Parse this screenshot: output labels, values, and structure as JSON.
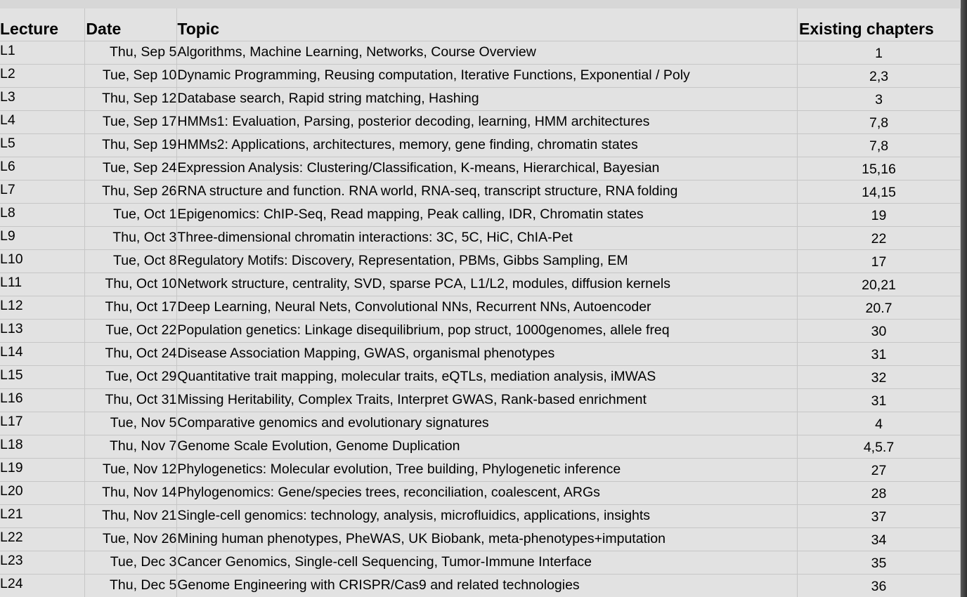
{
  "table": {
    "headers": {
      "lecture": "Lecture",
      "date": "Date",
      "topic": "Topic",
      "chapters": "Existing chapters"
    },
    "rows": [
      {
        "lecture": "L1",
        "date": "Thu, Sep 5",
        "topic": "Algorithms, Machine Learning, Networks, Course Overview",
        "chapters": "1"
      },
      {
        "lecture": "L2",
        "date": "Tue, Sep 10",
        "topic": "Dynamic Programming, Reusing computation, Iterative Functions, Exponential / Poly",
        "chapters": "2,3"
      },
      {
        "lecture": "L3",
        "date": "Thu, Sep 12",
        "topic": "Database search, Rapid string matching, Hashing",
        "chapters": "3"
      },
      {
        "lecture": "L4",
        "date": "Tue, Sep 17",
        "topic": "HMMs1: Evaluation, Parsing, posterior decoding, learning, HMM architectures",
        "chapters": "7,8"
      },
      {
        "lecture": "L5",
        "date": "Thu, Sep 19",
        "topic": "HMMs2: Applications, architectures, memory, gene finding, chromatin states",
        "chapters": "7,8"
      },
      {
        "lecture": "L6",
        "date": "Tue, Sep 24",
        "topic": "Expression Analysis: Clustering/Classification, K-means, Hierarchical, Bayesian",
        "chapters": "15,16"
      },
      {
        "lecture": "L7",
        "date": "Thu, Sep 26",
        "topic": "RNA structure and function. RNA world, RNA-seq, transcript structure, RNA folding",
        "chapters": "14,15"
      },
      {
        "lecture": "L8",
        "date": "Tue, Oct 1",
        "topic": "Epigenomics: ChIP-Seq, Read mapping, Peak calling, IDR, Chromatin states",
        "chapters": "19"
      },
      {
        "lecture": "L9",
        "date": "Thu, Oct 3",
        "topic": "Three-dimensional chromatin interactions: 3C, 5C, HiC, ChIA-Pet",
        "chapters": "22"
      },
      {
        "lecture": "L10",
        "date": "Tue, Oct 8",
        "topic": "Regulatory Motifs: Discovery, Representation, PBMs, Gibbs Sampling, EM",
        "chapters": "17"
      },
      {
        "lecture": "L11",
        "date": "Thu, Oct 10",
        "topic": "Network structure, centrality, SVD, sparse PCA, L1/L2, modules, diffusion kernels",
        "chapters": "20,21"
      },
      {
        "lecture": "L12",
        "date": "Thu, Oct 17",
        "topic": "Deep Learning, Neural Nets, Convolutional NNs, Recurrent NNs, Autoencoder",
        "chapters": "20.7"
      },
      {
        "lecture": "L13",
        "date": "Tue, Oct 22",
        "topic": "Population genetics: Linkage disequilibrium, pop struct, 1000genomes, allele freq",
        "chapters": "30"
      },
      {
        "lecture": "L14",
        "date": "Thu, Oct 24",
        "topic": "Disease Association Mapping, GWAS, organismal phenotypes",
        "chapters": "31"
      },
      {
        "lecture": "L15",
        "date": "Tue, Oct 29",
        "topic": "Quantitative trait mapping, molecular traits, eQTLs, mediation analysis, iMWAS",
        "chapters": "32"
      },
      {
        "lecture": "L16",
        "date": "Thu, Oct 31",
        "topic": "Missing Heritability, Complex Traits, Interpret GWAS, Rank-based enrichment",
        "chapters": "31"
      },
      {
        "lecture": "L17",
        "date": "Tue, Nov 5",
        "topic": "Comparative genomics and evolutionary signatures",
        "chapters": "4"
      },
      {
        "lecture": "L18",
        "date": "Thu, Nov 7",
        "topic": "Genome Scale Evolution, Genome Duplication",
        "chapters": "4,5.7"
      },
      {
        "lecture": "L19",
        "date": "Tue, Nov 12",
        "topic": "Phylogenetics: Molecular evolution, Tree building, Phylogenetic inference",
        "chapters": "27"
      },
      {
        "lecture": "L20",
        "date": "Thu, Nov 14",
        "topic": "Phylogenomics: Gene/species trees, reconciliation, coalescent, ARGs",
        "chapters": "28"
      },
      {
        "lecture": "L21",
        "date": "Thu, Nov 21",
        "topic": "Single-cell genomics: technology, analysis, microfluidics, applications, insights",
        "chapters": "37"
      },
      {
        "lecture": "L22",
        "date": "Tue, Nov 26",
        "topic": "Mining human phenotypes, PheWAS, UK Biobank, meta-phenotypes+imputation",
        "chapters": "34"
      },
      {
        "lecture": "L23",
        "date": "Tue, Dec 3",
        "topic": "Cancer Genomics, Single-cell Sequencing, Tumor-Immune Interface",
        "chapters": "35"
      },
      {
        "lecture": "L24",
        "date": "Thu, Dec 5",
        "topic": "Genome Engineering with CRISPR/Cas9 and related technologies",
        "chapters": "36"
      }
    ]
  }
}
